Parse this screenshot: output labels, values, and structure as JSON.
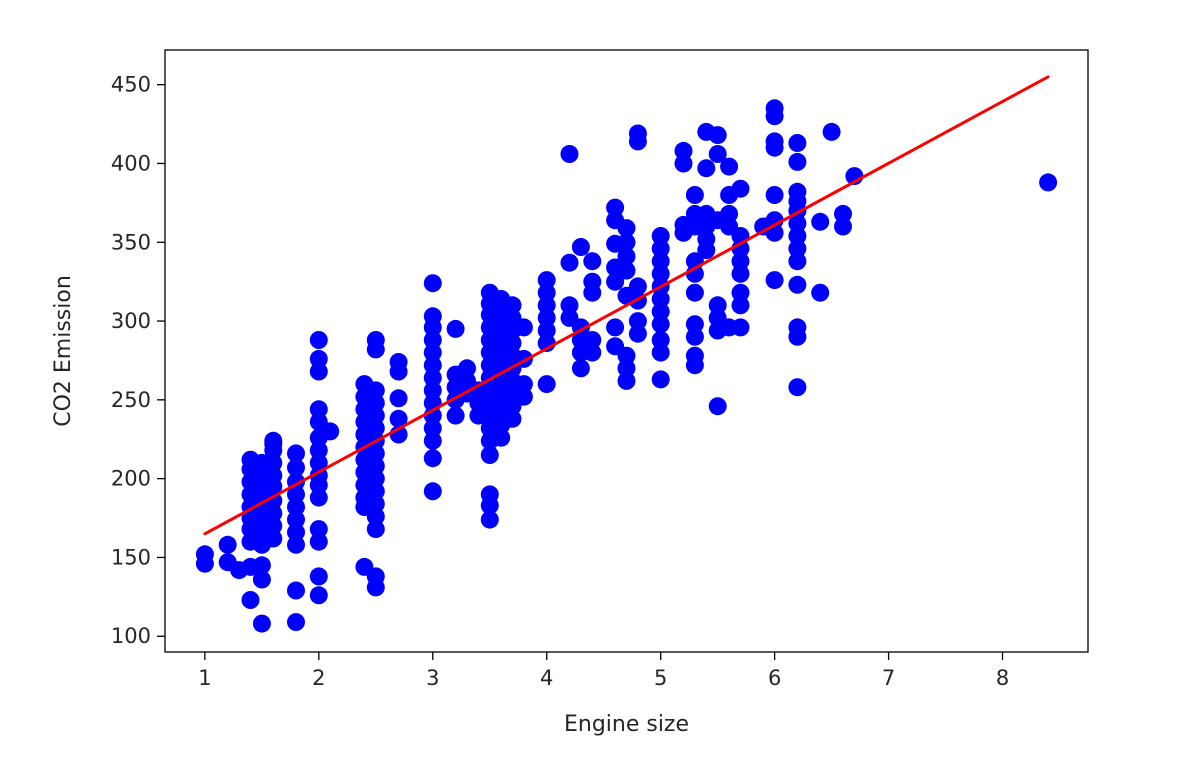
{
  "chart_data": {
    "type": "scatter",
    "xlabel": "Engine size",
    "ylabel": "CO2 Emission",
    "xlim": [
      0.65,
      8.75
    ],
    "ylim": [
      90,
      472
    ],
    "x_ticks": [
      1,
      2,
      3,
      4,
      5,
      6,
      7,
      8
    ],
    "y_ticks": [
      100,
      150,
      200,
      250,
      300,
      350,
      400,
      450
    ],
    "grid": false,
    "colors": {
      "points": "#0000ff",
      "fit_line": "#ff0000"
    },
    "fit_line": {
      "x": [
        1.0,
        8.4
      ],
      "y": [
        165,
        455
      ]
    },
    "series": [
      {
        "points": [
          [
            1.0,
            152
          ],
          [
            1.0,
            146
          ],
          [
            1.2,
            158
          ],
          [
            1.2,
            147
          ],
          [
            1.3,
            142
          ],
          [
            1.4,
            212
          ],
          [
            1.4,
            206
          ],
          [
            1.4,
            198
          ],
          [
            1.4,
            190
          ],
          [
            1.4,
            182
          ],
          [
            1.4,
            175
          ],
          [
            1.4,
            168
          ],
          [
            1.4,
            160
          ],
          [
            1.4,
            144
          ],
          [
            1.4,
            123
          ],
          [
            1.5,
            210
          ],
          [
            1.5,
            200
          ],
          [
            1.5,
            192
          ],
          [
            1.5,
            186
          ],
          [
            1.5,
            178
          ],
          [
            1.5,
            170
          ],
          [
            1.5,
            164
          ],
          [
            1.5,
            158
          ],
          [
            1.5,
            145
          ],
          [
            1.5,
            136
          ],
          [
            1.5,
            108
          ],
          [
            1.6,
            224
          ],
          [
            1.6,
            218
          ],
          [
            1.6,
            210
          ],
          [
            1.6,
            202
          ],
          [
            1.6,
            195
          ],
          [
            1.6,
            186
          ],
          [
            1.6,
            178
          ],
          [
            1.6,
            170
          ],
          [
            1.6,
            162
          ],
          [
            1.6,
            222
          ],
          [
            1.8,
            216
          ],
          [
            1.8,
            207
          ],
          [
            1.8,
            198
          ],
          [
            1.8,
            190
          ],
          [
            1.8,
            182
          ],
          [
            1.8,
            174
          ],
          [
            1.8,
            166
          ],
          [
            1.8,
            158
          ],
          [
            1.8,
            129
          ],
          [
            1.8,
            109
          ],
          [
            2.0,
            288
          ],
          [
            2.0,
            276
          ],
          [
            2.0,
            268
          ],
          [
            2.0,
            244
          ],
          [
            2.0,
            236
          ],
          [
            2.0,
            226
          ],
          [
            2.0,
            218
          ],
          [
            2.0,
            210
          ],
          [
            2.0,
            202
          ],
          [
            2.0,
            196
          ],
          [
            2.0,
            188
          ],
          [
            2.0,
            168
          ],
          [
            2.0,
            160
          ],
          [
            2.0,
            138
          ],
          [
            2.0,
            126
          ],
          [
            2.1,
            230
          ],
          [
            2.4,
            260
          ],
          [
            2.4,
            252
          ],
          [
            2.4,
            244
          ],
          [
            2.4,
            236
          ],
          [
            2.4,
            228
          ],
          [
            2.4,
            220
          ],
          [
            2.4,
            212
          ],
          [
            2.4,
            204
          ],
          [
            2.4,
            196
          ],
          [
            2.4,
            188
          ],
          [
            2.4,
            182
          ],
          [
            2.4,
            144
          ],
          [
            2.5,
            288
          ],
          [
            2.5,
            282
          ],
          [
            2.5,
            256
          ],
          [
            2.5,
            248
          ],
          [
            2.5,
            240
          ],
          [
            2.5,
            232
          ],
          [
            2.5,
            224
          ],
          [
            2.5,
            216
          ],
          [
            2.5,
            208
          ],
          [
            2.5,
            200
          ],
          [
            2.5,
            192
          ],
          [
            2.5,
            184
          ],
          [
            2.5,
            176
          ],
          [
            2.5,
            168
          ],
          [
            2.5,
            138
          ],
          [
            2.5,
            131
          ],
          [
            2.7,
            274
          ],
          [
            2.7,
            268
          ],
          [
            2.7,
            251
          ],
          [
            2.7,
            238
          ],
          [
            2.7,
            228
          ],
          [
            3.0,
            324
          ],
          [
            3.0,
            303
          ],
          [
            3.0,
            296
          ],
          [
            3.0,
            288
          ],
          [
            3.0,
            280
          ],
          [
            3.0,
            272
          ],
          [
            3.0,
            264
          ],
          [
            3.0,
            256
          ],
          [
            3.0,
            248
          ],
          [
            3.0,
            240
          ],
          [
            3.0,
            232
          ],
          [
            3.0,
            224
          ],
          [
            3.0,
            213
          ],
          [
            3.0,
            192
          ],
          [
            3.2,
            295
          ],
          [
            3.2,
            266
          ],
          [
            3.2,
            258
          ],
          [
            3.2,
            250
          ],
          [
            3.2,
            240
          ],
          [
            3.3,
            270
          ],
          [
            3.3,
            262
          ],
          [
            3.3,
            254
          ],
          [
            3.4,
            256
          ],
          [
            3.4,
            248
          ],
          [
            3.4,
            240
          ],
          [
            3.5,
            318
          ],
          [
            3.5,
            311
          ],
          [
            3.5,
            304
          ],
          [
            3.5,
            296
          ],
          [
            3.5,
            288
          ],
          [
            3.5,
            280
          ],
          [
            3.5,
            272
          ],
          [
            3.5,
            264
          ],
          [
            3.5,
            256
          ],
          [
            3.5,
            248
          ],
          [
            3.5,
            240
          ],
          [
            3.5,
            232
          ],
          [
            3.5,
            224
          ],
          [
            3.5,
            215
          ],
          [
            3.5,
            190
          ],
          [
            3.5,
            183
          ],
          [
            3.5,
            174
          ],
          [
            3.6,
            314
          ],
          [
            3.6,
            306
          ],
          [
            3.6,
            298
          ],
          [
            3.6,
            290
          ],
          [
            3.6,
            282
          ],
          [
            3.6,
            274
          ],
          [
            3.6,
            266
          ],
          [
            3.6,
            258
          ],
          [
            3.6,
            250
          ],
          [
            3.6,
            242
          ],
          [
            3.6,
            234
          ],
          [
            3.6,
            226
          ],
          [
            3.7,
            310
          ],
          [
            3.7,
            302
          ],
          [
            3.7,
            294
          ],
          [
            3.7,
            286
          ],
          [
            3.7,
            278
          ],
          [
            3.7,
            270
          ],
          [
            3.7,
            262
          ],
          [
            3.7,
            254
          ],
          [
            3.7,
            246
          ],
          [
            3.7,
            238
          ],
          [
            3.8,
            296
          ],
          [
            3.8,
            276
          ],
          [
            3.8,
            260
          ],
          [
            3.8,
            252
          ],
          [
            4.0,
            326
          ],
          [
            4.0,
            318
          ],
          [
            4.0,
            310
          ],
          [
            4.0,
            302
          ],
          [
            4.0,
            294
          ],
          [
            4.0,
            286
          ],
          [
            4.0,
            260
          ],
          [
            4.2,
            406
          ],
          [
            4.2,
            337
          ],
          [
            4.2,
            310
          ],
          [
            4.2,
            302
          ],
          [
            4.3,
            347
          ],
          [
            4.3,
            296
          ],
          [
            4.3,
            288
          ],
          [
            4.3,
            280
          ],
          [
            4.3,
            270
          ],
          [
            4.4,
            338
          ],
          [
            4.4,
            325
          ],
          [
            4.4,
            318
          ],
          [
            4.4,
            288
          ],
          [
            4.4,
            280
          ],
          [
            4.6,
            372
          ],
          [
            4.6,
            364
          ],
          [
            4.6,
            349
          ],
          [
            4.6,
            334
          ],
          [
            4.6,
            325
          ],
          [
            4.6,
            296
          ],
          [
            4.6,
            284
          ],
          [
            4.7,
            359
          ],
          [
            4.7,
            350
          ],
          [
            4.7,
            341
          ],
          [
            4.7,
            332
          ],
          [
            4.7,
            316
          ],
          [
            4.7,
            278
          ],
          [
            4.7,
            270
          ],
          [
            4.7,
            262
          ],
          [
            4.8,
            419
          ],
          [
            4.8,
            414
          ],
          [
            4.8,
            322
          ],
          [
            4.8,
            313
          ],
          [
            4.8,
            300
          ],
          [
            4.8,
            292
          ],
          [
            5.0,
            354
          ],
          [
            5.0,
            346
          ],
          [
            5.0,
            338
          ],
          [
            5.0,
            330
          ],
          [
            5.0,
            322
          ],
          [
            5.0,
            314
          ],
          [
            5.0,
            306
          ],
          [
            5.0,
            298
          ],
          [
            5.0,
            288
          ],
          [
            5.0,
            280
          ],
          [
            5.0,
            263
          ],
          [
            5.2,
            408
          ],
          [
            5.2,
            400
          ],
          [
            5.2,
            361
          ],
          [
            5.2,
            356
          ],
          [
            5.3,
            380
          ],
          [
            5.3,
            368
          ],
          [
            5.3,
            360
          ],
          [
            5.3,
            338
          ],
          [
            5.3,
            330
          ],
          [
            5.3,
            318
          ],
          [
            5.3,
            298
          ],
          [
            5.3,
            290
          ],
          [
            5.3,
            278
          ],
          [
            5.3,
            272
          ],
          [
            5.4,
            420
          ],
          [
            5.4,
            397
          ],
          [
            5.4,
            368
          ],
          [
            5.4,
            360
          ],
          [
            5.4,
            352
          ],
          [
            5.4,
            345
          ],
          [
            5.5,
            418
          ],
          [
            5.5,
            406
          ],
          [
            5.5,
            364
          ],
          [
            5.5,
            310
          ],
          [
            5.5,
            302
          ],
          [
            5.5,
            294
          ],
          [
            5.5,
            246
          ],
          [
            5.6,
            398
          ],
          [
            5.6,
            380
          ],
          [
            5.6,
            368
          ],
          [
            5.6,
            360
          ],
          [
            5.6,
            296
          ],
          [
            5.7,
            384
          ],
          [
            5.7,
            354
          ],
          [
            5.7,
            346
          ],
          [
            5.7,
            338
          ],
          [
            5.7,
            330
          ],
          [
            5.7,
            318
          ],
          [
            5.7,
            310
          ],
          [
            5.7,
            296
          ],
          [
            5.9,
            360
          ],
          [
            6.0,
            435
          ],
          [
            6.0,
            430
          ],
          [
            6.0,
            414
          ],
          [
            6.0,
            410
          ],
          [
            6.0,
            380
          ],
          [
            6.0,
            364
          ],
          [
            6.0,
            356
          ],
          [
            6.0,
            326
          ],
          [
            6.2,
            413
          ],
          [
            6.2,
            401
          ],
          [
            6.2,
            382
          ],
          [
            6.2,
            376
          ],
          [
            6.2,
            370
          ],
          [
            6.2,
            362
          ],
          [
            6.2,
            354
          ],
          [
            6.2,
            346
          ],
          [
            6.2,
            338
          ],
          [
            6.2,
            323
          ],
          [
            6.2,
            296
          ],
          [
            6.2,
            290
          ],
          [
            6.2,
            258
          ],
          [
            6.4,
            363
          ],
          [
            6.4,
            318
          ],
          [
            6.5,
            420
          ],
          [
            6.6,
            368
          ],
          [
            6.6,
            360
          ],
          [
            6.7,
            392
          ],
          [
            8.4,
            388
          ]
        ]
      }
    ]
  }
}
